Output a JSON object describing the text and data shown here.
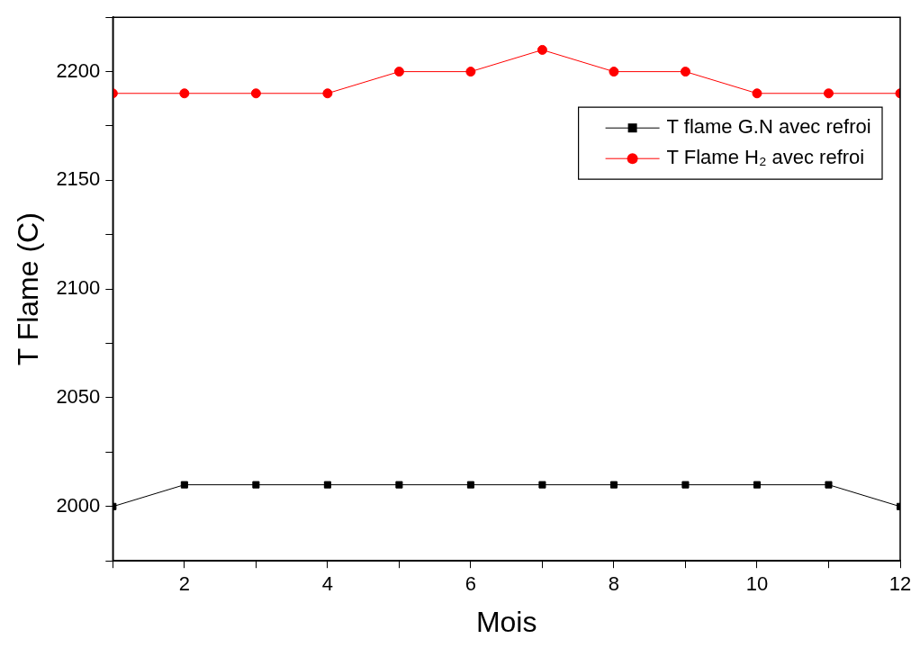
{
  "chart_data": {
    "type": "line",
    "xlabel": "Mois",
    "ylabel": "T Flame (C)",
    "x": [
      1,
      2,
      3,
      4,
      5,
      6,
      7,
      8,
      9,
      10,
      11,
      12
    ],
    "series": [
      {
        "name": "T flame G.N avec refroi",
        "color": "#000000",
        "marker": "square",
        "values": [
          2000,
          2010,
          2010,
          2010,
          2010,
          2010,
          2010,
          2010,
          2010,
          2010,
          2010,
          2000
        ]
      },
      {
        "name": "T Flame H₂ avec refroi",
        "color": "#ff0000",
        "marker": "circle",
        "values": [
          2190,
          2190,
          2190,
          2190,
          2200,
          2200,
          2210,
          2200,
          2200,
          2190,
          2190,
          2190
        ]
      }
    ],
    "xlim": [
      1,
      12
    ],
    "xticks": [
      {
        "value": 1,
        "label": null
      },
      2,
      {
        "value": 3,
        "label": null
      },
      4,
      {
        "value": 5,
        "label": null
      },
      6,
      {
        "value": 7,
        "label": null
      },
      8,
      {
        "value": 9,
        "label": null
      },
      10,
      {
        "value": 11,
        "label": null
      },
      12
    ],
    "ylim": [
      1975,
      2225
    ],
    "yticks": [
      {
        "value": 1975,
        "label": null
      },
      2000,
      {
        "value": 2025,
        "label": null
      },
      2050,
      {
        "value": 2075,
        "label": null
      },
      2100,
      {
        "value": 2125,
        "label": null
      },
      2150,
      {
        "value": 2175,
        "label": null
      },
      2200,
      {
        "value": 2225,
        "label": null
      }
    ],
    "legend": "top right",
    "grid": false,
    "line_style": "solid"
  }
}
